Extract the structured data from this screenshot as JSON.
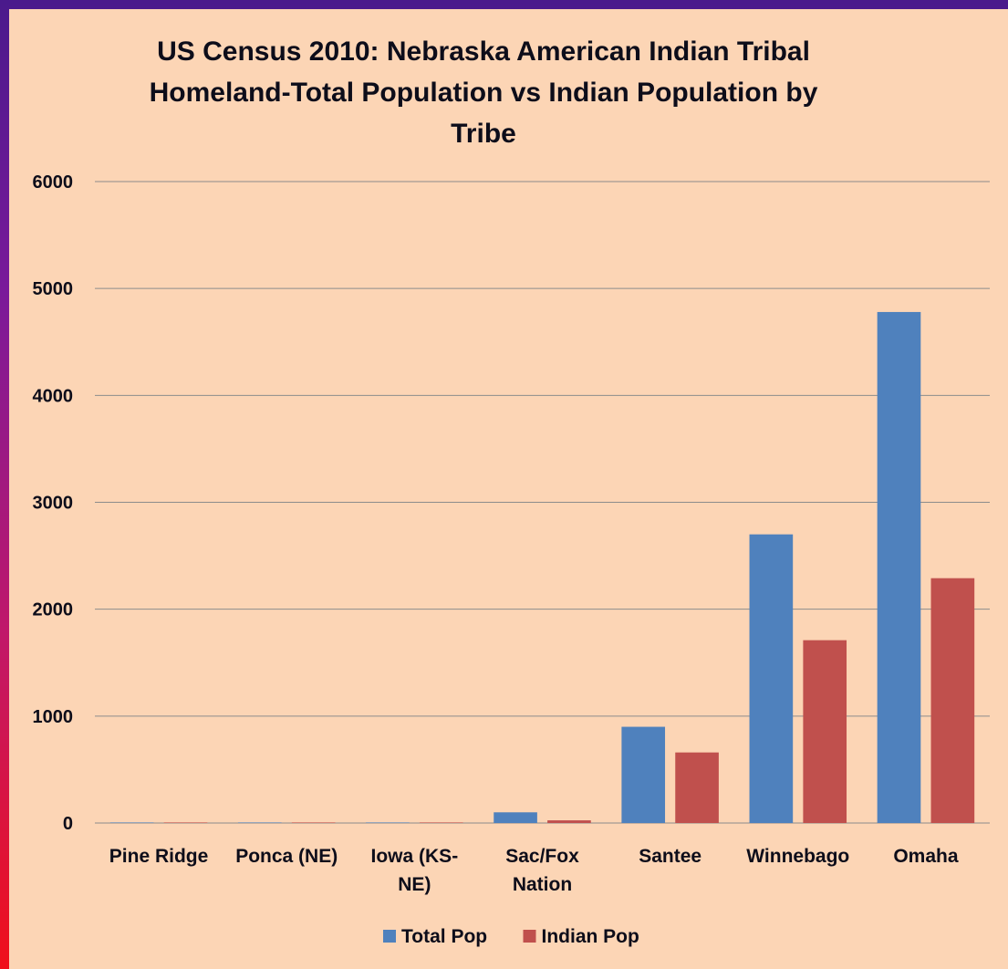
{
  "chart_data": {
    "type": "bar",
    "title": "US Census 2010: Nebraska American Indian Tribal\nHomeland-Total Population vs Indian Population by\nTribe",
    "xlabel": "",
    "ylabel": "",
    "categories": [
      [
        "Pine Ridge"
      ],
      [
        "Ponca (NE)"
      ],
      [
        "Iowa (KS-",
        "NE)"
      ],
      [
        "Sac/Fox",
        "Nation"
      ],
      [
        "Santee"
      ],
      [
        "Winnebago"
      ],
      [
        "Omaha"
      ]
    ],
    "series": [
      {
        "name": "Total Pop",
        "color": "#4f81bd",
        "values": [
          5,
          5,
          5,
          100,
          900,
          2700,
          4780
        ]
      },
      {
        "name": "Indian Pop",
        "color": "#c0504d",
        "values": [
          5,
          5,
          5,
          25,
          660,
          1710,
          2290
        ]
      }
    ],
    "ylim": [
      0,
      6000
    ],
    "yticks": [
      0,
      1000,
      2000,
      3000,
      4000,
      5000,
      6000
    ],
    "grid": true,
    "legend_position": "bottom"
  },
  "colors": {
    "background": "#fcd5b5",
    "gridline": "#8c8c8c",
    "text": "#0d0d1a"
  }
}
